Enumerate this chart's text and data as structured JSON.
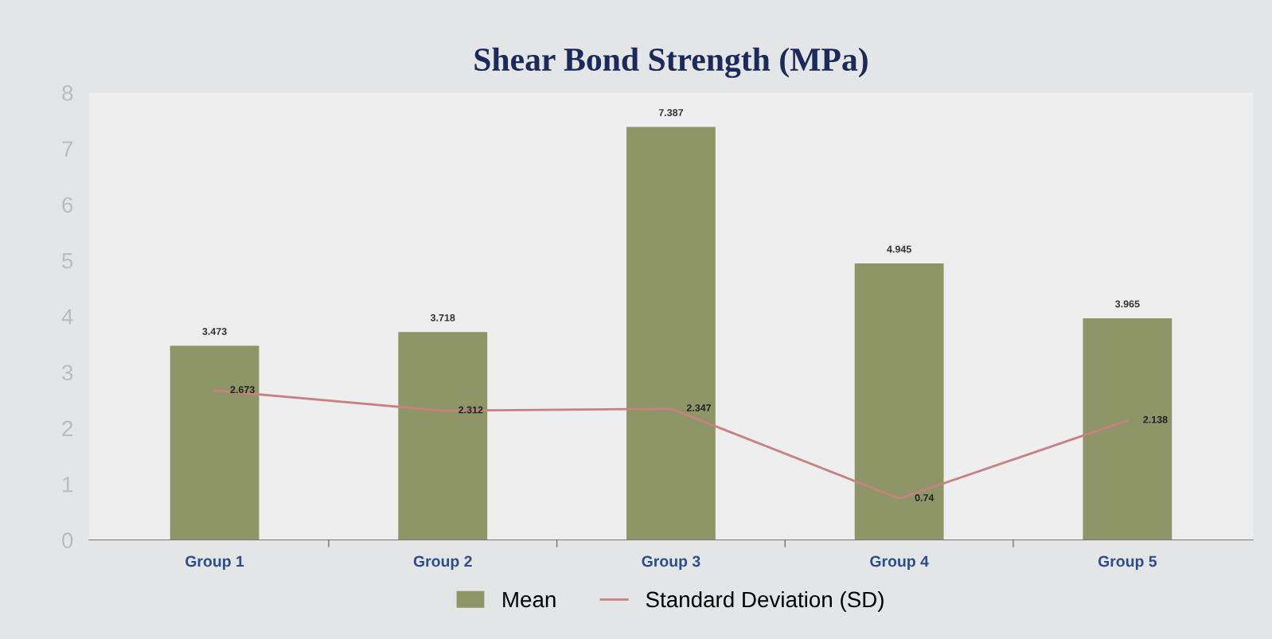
{
  "chart_data": {
    "type": "bar",
    "title": "Shear Bond Strength (MPa)",
    "categories": [
      "Group 1",
      "Group 2",
      "Group 3",
      "Group 4",
      "Group 5"
    ],
    "series": [
      {
        "name": "Mean",
        "color": "#8e9668",
        "values": [
          3.473,
          3.718,
          7.387,
          4.945,
          3.965
        ]
      },
      {
        "name": "Standard Deviation (SD)",
        "type": "line",
        "color": "#c98080",
        "values": [
          2.673,
          2.312,
          2.347,
          0.74,
          2.138
        ]
      }
    ],
    "ylim": [
      0,
      8
    ],
    "yticks": [
      0,
      1,
      2,
      3,
      4,
      5,
      6,
      7,
      8
    ],
    "data_labels": true,
    "grid": false,
    "legend": "bottom",
    "marker": "none",
    "line_style": "solid"
  }
}
